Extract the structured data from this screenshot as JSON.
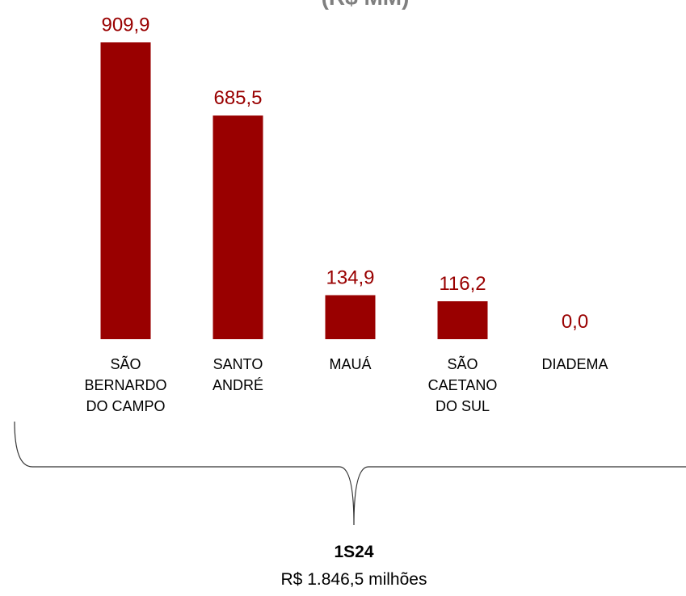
{
  "chart_data": {
    "type": "bar",
    "title": "(R$ MM)",
    "categories": [
      "SÃO BERNARDO DO CAMPO",
      "SANTO ANDRÉ",
      "MAUÁ",
      "SÃO CAETANO DO SUL",
      "DIADEMA"
    ],
    "values": [
      909.9,
      685.5,
      134.9,
      116.2,
      0.0
    ],
    "value_labels": [
      "909,9",
      "685,5",
      "134,9",
      "116,2",
      "0,0"
    ],
    "color": "#990000",
    "ylim": [
      0,
      1000
    ],
    "annotations": [
      "1S24",
      "R$ 1.846,5 milhões"
    ]
  }
}
